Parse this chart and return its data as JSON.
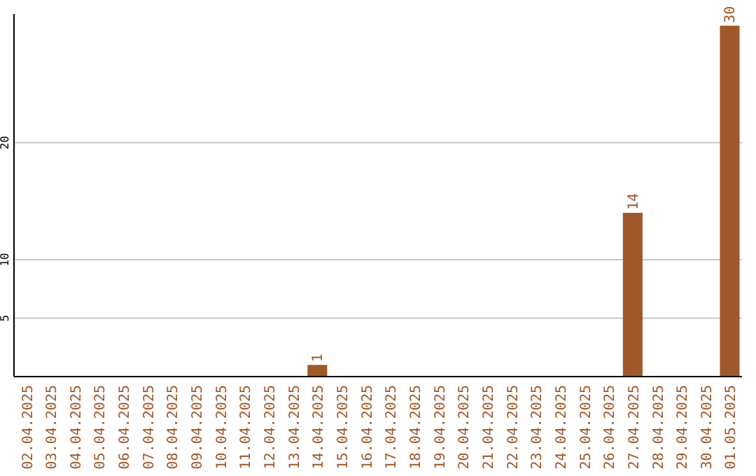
{
  "chart_data": {
    "type": "bar",
    "categories": [
      "02.04.2025",
      "03.04.2025",
      "04.04.2025",
      "05.04.2025",
      "06.04.2025",
      "07.04.2025",
      "08.04.2025",
      "09.04.2025",
      "10.04.2025",
      "11.04.2025",
      "12.04.2025",
      "13.04.2025",
      "14.04.2025",
      "15.04.2025",
      "16.04.2025",
      "17.04.2025",
      "18.04.2025",
      "19.04.2025",
      "20.04.2025",
      "21.04.2025",
      "22.04.2025",
      "23.04.2025",
      "24.04.2025",
      "25.04.2025",
      "26.04.2025",
      "27.04.2025",
      "28.04.2025",
      "29.04.2025",
      "30.04.2025",
      "01.05.2025"
    ],
    "values": [
      0,
      0,
      0,
      0,
      0,
      0,
      0,
      0,
      0,
      0,
      0,
      0,
      1,
      0,
      0,
      0,
      0,
      0,
      0,
      0,
      0,
      0,
      0,
      0,
      0,
      14,
      0,
      0,
      0,
      30
    ],
    "value_labels": [
      null,
      null,
      null,
      null,
      null,
      null,
      null,
      null,
      null,
      null,
      null,
      null,
      "1",
      null,
      null,
      null,
      null,
      null,
      null,
      null,
      null,
      null,
      null,
      null,
      null,
      "14",
      null,
      null,
      null,
      "30"
    ],
    "color": "#a0582a",
    "ylim": [
      0,
      31
    ],
    "yticks": [
      5,
      10,
      20
    ],
    "grid": "y"
  }
}
